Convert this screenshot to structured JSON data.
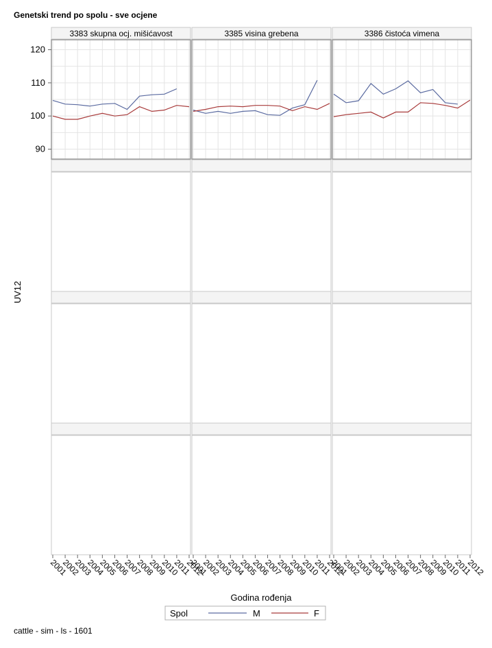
{
  "title": "Genetski trend po spolu - sve ocjene",
  "footer": "cattle - sim - ls - 1601",
  "colors": {
    "M": "#5a6aa0",
    "F": "#a83a3a",
    "grid": "#e4e4e4",
    "frame": "#9a9a9a"
  },
  "chart_data": {
    "type": "line",
    "xlabel": "Godina rođenja",
    "ylabel": "UV12",
    "ylim": [
      87,
      123
    ],
    "yticks": [
      90,
      100,
      110,
      120
    ],
    "xticks": [
      "2001",
      "2002",
      "2003",
      "2004",
      "2005",
      "2006",
      "2007",
      "2008",
      "2009",
      "2010",
      "2011",
      "2012"
    ],
    "legend": {
      "title": "Spol",
      "placement": "bottom",
      "entries": [
        "M",
        "F"
      ]
    },
    "panels": [
      {
        "label": "3383 skupna ocj. mišićavost",
        "series": [
          {
            "name": "M",
            "x": [
              2001,
              2002,
              2003,
              2004,
              2005,
              2006,
              2007,
              2008,
              2009,
              2010,
              2011
            ],
            "values": [
              104.7,
              103.6,
              103.4,
              103.0,
              103.6,
              103.8,
              102.0,
              106.0,
              106.4,
              106.6,
              108.2
            ]
          },
          {
            "name": "F",
            "x": [
              2001,
              2002,
              2003,
              2004,
              2005,
              2006,
              2007,
              2008,
              2009,
              2010,
              2011,
              2012
            ],
            "values": [
              100.0,
              99.0,
              99.0,
              100.0,
              100.8,
              100.0,
              100.4,
              102.8,
              101.4,
              101.8,
              103.2,
              102.8
            ]
          }
        ]
      },
      {
        "label": "3385 visina grebena",
        "series": [
          {
            "name": "M",
            "x": [
              2001,
              2002,
              2003,
              2004,
              2005,
              2006,
              2007,
              2008,
              2009,
              2010,
              2011
            ],
            "values": [
              101.8,
              100.8,
              101.4,
              100.8,
              101.4,
              101.6,
              100.4,
              100.2,
              102.4,
              103.4,
              110.8
            ]
          },
          {
            "name": "F",
            "x": [
              2001,
              2002,
              2003,
              2004,
              2005,
              2006,
              2007,
              2008,
              2009,
              2010,
              2011,
              2012
            ],
            "values": [
              101.4,
              102.0,
              102.8,
              103.0,
              102.8,
              103.2,
              103.2,
              103.0,
              101.6,
              102.8,
              102.0,
              103.8
            ]
          }
        ]
      },
      {
        "label": "3386 čistoća vimena",
        "series": [
          {
            "name": "M",
            "x": [
              2001,
              2002,
              2003,
              2004,
              2005,
              2006,
              2007,
              2008,
              2009,
              2010,
              2011
            ],
            "values": [
              106.6,
              104.0,
              104.6,
              109.8,
              106.6,
              108.2,
              110.6,
              107.0,
              108.0,
              104.0,
              103.6
            ]
          },
          {
            "name": "F",
            "x": [
              2001,
              2002,
              2003,
              2004,
              2005,
              2006,
              2007,
              2008,
              2009,
              2010,
              2011,
              2012
            ],
            "values": [
              99.8,
              100.4,
              100.8,
              101.2,
              99.4,
              101.2,
              101.2,
              104.0,
              103.8,
              103.2,
              102.4,
              104.8
            ]
          }
        ]
      }
    ]
  }
}
